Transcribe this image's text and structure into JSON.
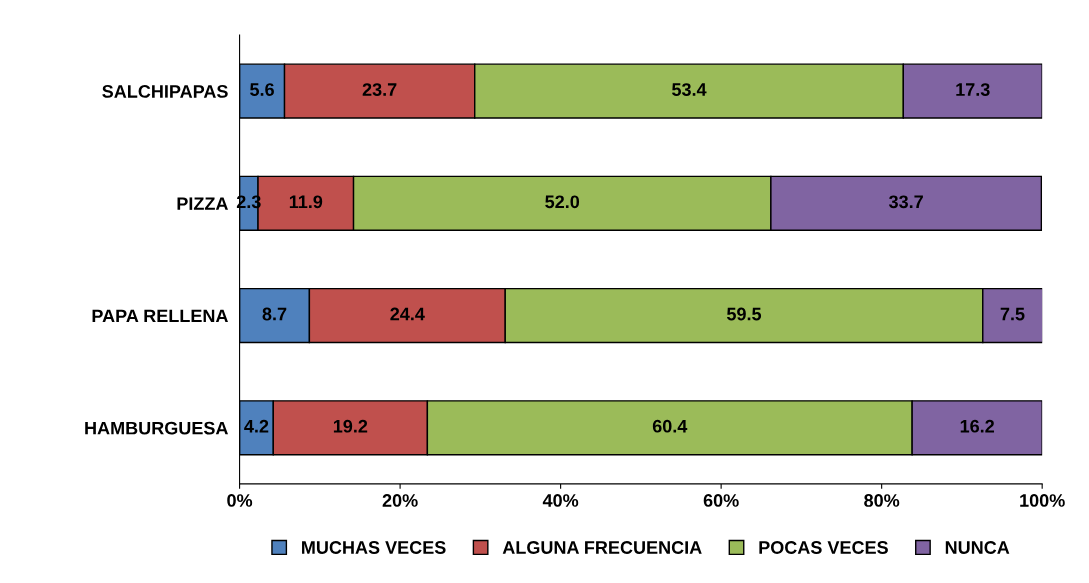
{
  "chart_data": {
    "type": "bar",
    "orientation": "horizontal",
    "stacked": true,
    "legend": "bottom",
    "grid": false,
    "categories": [
      "SALCHIPAPAS",
      "PIZZA",
      "PAPA RELLENA",
      "HAMBURGUESA"
    ],
    "xlim": [
      0,
      100
    ],
    "xticks": [
      {
        "value": 0,
        "label": "0%"
      },
      {
        "value": 20,
        "label": "20%"
      },
      {
        "value": 40,
        "label": "40%"
      },
      {
        "value": 60,
        "label": "60%"
      },
      {
        "value": 80,
        "label": "80%"
      },
      {
        "value": 100,
        "label": "100%"
      }
    ],
    "series": [
      {
        "name": "MUCHAS VECES",
        "color": "#4f81bd",
        "values": [
          5.6,
          2.3,
          8.7,
          4.2
        ],
        "value_labels": [
          "5.6",
          "2.3",
          "8.7",
          "4.2"
        ]
      },
      {
        "name": "ALGUNA FRECUENCIA",
        "color": "#c0504d",
        "values": [
          23.7,
          11.9,
          24.4,
          19.2
        ],
        "value_labels": [
          "23.7",
          "11.9",
          "24.4",
          "19.2"
        ]
      },
      {
        "name": "POCAS VECES",
        "color": "#9bbb59",
        "values": [
          53.4,
          52.0,
          59.5,
          60.4
        ],
        "value_labels": [
          "53.4",
          "52.0",
          "59.5",
          "60.4"
        ]
      },
      {
        "name": "NUNCA",
        "color": "#8064a2",
        "values": [
          17.3,
          33.7,
          7.5,
          16.2
        ],
        "value_labels": [
          "17.3",
          "33.7",
          "7.5",
          "16.2"
        ]
      }
    ]
  }
}
